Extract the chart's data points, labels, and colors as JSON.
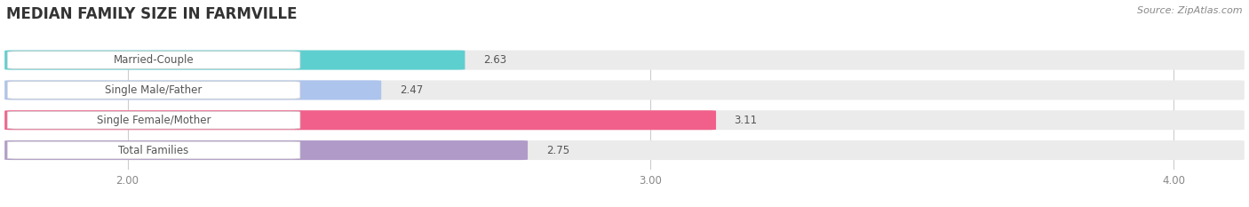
{
  "title": "MEDIAN FAMILY SIZE IN FARMVILLE",
  "source": "Source: ZipAtlas.com",
  "categories": [
    "Married-Couple",
    "Single Male/Father",
    "Single Female/Mother",
    "Total Families"
  ],
  "values": [
    2.63,
    2.47,
    3.11,
    2.75
  ],
  "bar_colors": [
    "#5ecfcf",
    "#adc4ed",
    "#f0608a",
    "#b09ac8"
  ],
  "xlim_min": 1.78,
  "xlim_max": 4.12,
  "xticks": [
    2.0,
    3.0,
    4.0
  ],
  "xtick_labels": [
    "2.00",
    "3.00",
    "4.00"
  ],
  "bar_height": 0.62,
  "label_fontsize": 8.5,
  "value_fontsize": 8.5,
  "title_fontsize": 12,
  "source_fontsize": 8,
  "background_color": "#ffffff",
  "bar_bg_color": "#ebebeb",
  "grid_color": "#cccccc",
  "label_pill_color": "#ffffff",
  "label_text_color": "#555555",
  "value_text_color": "#555555"
}
